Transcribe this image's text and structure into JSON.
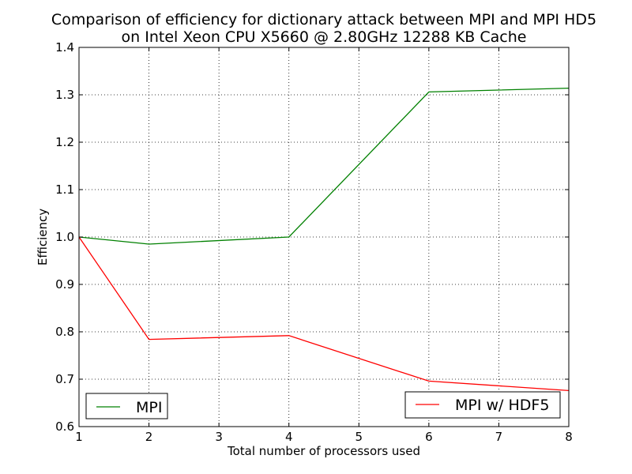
{
  "chart_data": {
    "type": "line",
    "title_lines": [
      "Comparison of efficiency for dictionary attack between MPI and MPI HD5",
      "on Intel Xeon CPU X5660 @ 2.80GHz 12288 KB Cache"
    ],
    "xlabel": "Total number of processors used",
    "ylabel": "Efficiency",
    "xlim": [
      1,
      8
    ],
    "ylim": [
      0.6,
      1.4
    ],
    "xticks": [
      1,
      2,
      3,
      4,
      5,
      6,
      7,
      8
    ],
    "yticks": [
      "0.6",
      "0.7",
      "0.8",
      "0.9",
      "1.0",
      "1.1",
      "1.2",
      "1.3",
      "1.4"
    ],
    "grid": true,
    "series": [
      {
        "name": "MPI",
        "color": "#008000",
        "x": [
          1,
          2,
          4,
          6,
          8
        ],
        "y": [
          1.0,
          0.985,
          1.0,
          1.306,
          1.314
        ],
        "legend_position": "lower-left"
      },
      {
        "name": "MPI w/ HDF5",
        "color": "#ff0000",
        "x": [
          1,
          2,
          4,
          6,
          8
        ],
        "y": [
          1.0,
          0.784,
          0.792,
          0.696,
          0.676
        ],
        "legend_position": "lower-right"
      }
    ]
  }
}
